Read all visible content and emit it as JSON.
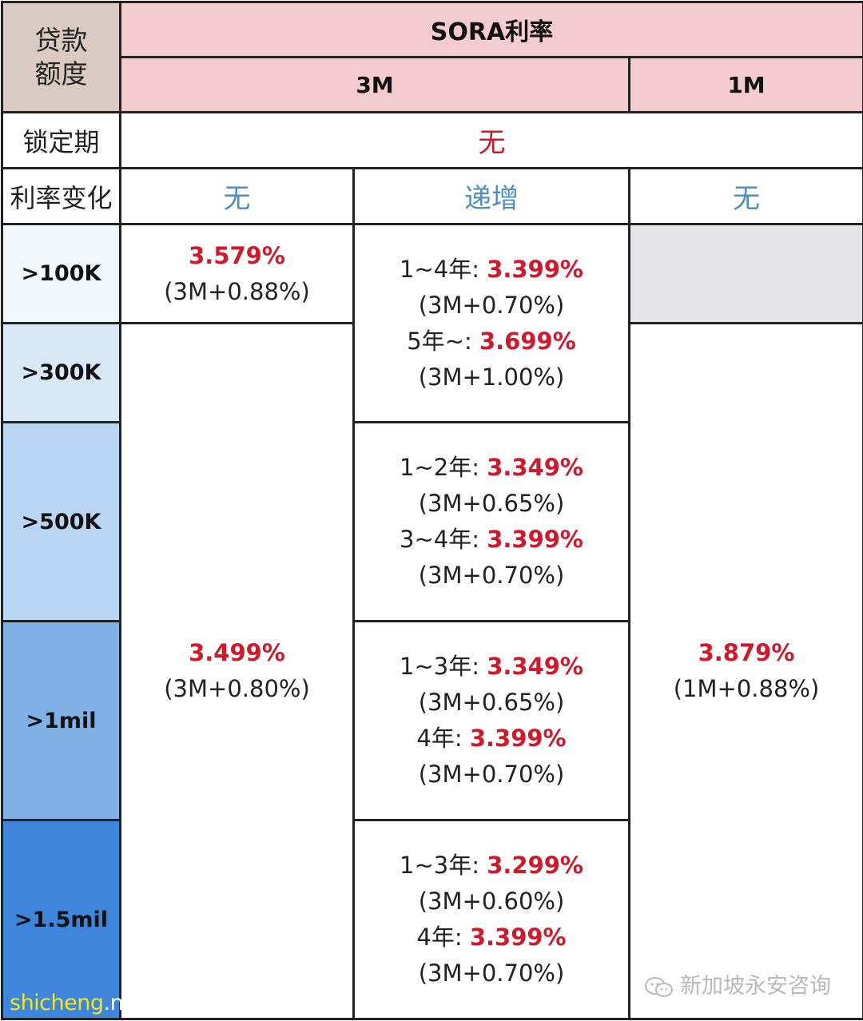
{
  "header": {
    "loan_amount_label": "贷款额度",
    "sora_label": "SORA利率",
    "term_3m": "3M",
    "term_1m": "1M"
  },
  "rows": {
    "lock_in_label": "锁定期",
    "lock_in_value": "无",
    "rate_change_label": "利率变化",
    "rate_change_3m_flat": "无",
    "rate_change_3m_step": "递增",
    "rate_change_1m": "无"
  },
  "loan_bands": [
    ">100K",
    ">300K",
    ">500K",
    ">1mil",
    ">1.5mil"
  ],
  "band_colors": [
    "#f3f8fd",
    "#d9e8f7",
    "#b9d5f1",
    "#7fb0e6",
    "#3d86db"
  ],
  "flat_3m": {
    "tier_100k": {
      "rate": "3.579%",
      "spread": "(3M+0.88%)"
    },
    "tier_300k_plus": {
      "rate": "3.499%",
      "spread": "(3M+0.80%)"
    }
  },
  "stepped_3m": [
    {
      "line1_label": "1~4年: ",
      "line1_rate": "3.399%",
      "line2": "(3M+0.70%)",
      "line3_label": "5年~: ",
      "line3_rate": "3.699%",
      "line4": "(3M+1.00%)"
    },
    {
      "line1_label": "1~2年: ",
      "line1_rate": "3.349%",
      "line2": "(3M+0.65%)",
      "line3_label": "3~4年: ",
      "line3_rate": "3.399%",
      "line4": "(3M+0.70%)"
    },
    {
      "line1_label": "1~3年: ",
      "line1_rate": "3.349%",
      "line2": "(3M+0.65%)",
      "line3_label": "4年: ",
      "line3_rate": "3.399%",
      "line4": "(3M+0.70%)"
    },
    {
      "line1_label": "1~3年: ",
      "line1_rate": "3.299%",
      "line2": "(3M+0.60%)",
      "line3_label": "4年: ",
      "line3_rate": "3.399%",
      "line4": "(3M+0.70%)"
    }
  ],
  "one_month": {
    "rate": "3.879%",
    "spread": "(1M+0.88%)"
  },
  "watermarks": {
    "site_a": "shicheng",
    "site_b": ".news",
    "wechat": "新加坡永安咨询",
    "wechat_icon": "wechat-icon"
  }
}
